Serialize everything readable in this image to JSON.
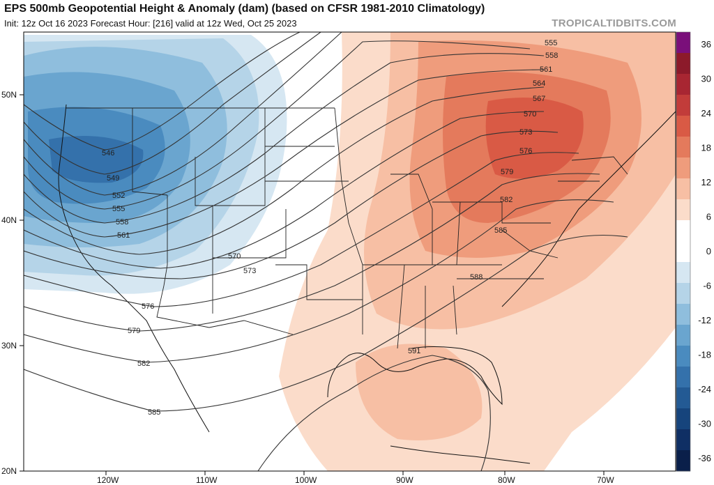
{
  "header": {
    "title": "EPS 500mb Geopotential Height & Anomaly (dam) (based on CFSR 1981-2010 Climatology)",
    "subtitle": "Init: 12z Oct 16 2023   Forecast Hour: [216]   valid at 12z Wed, Oct 25 2023",
    "brand": "TROPICALTIDBITS.COM"
  },
  "map": {
    "lat_labels": [
      "50N",
      "40N",
      "30N",
      "20N"
    ],
    "lon_labels": [
      "120W",
      "110W",
      "100W",
      "90W",
      "80W",
      "70W"
    ],
    "contour_labels": [
      "546",
      "549",
      "552",
      "555",
      "558",
      "561",
      "570",
      "573",
      "576",
      "579",
      "582",
      "585",
      "555",
      "558",
      "561",
      "564",
      "567",
      "570",
      "573",
      "576",
      "579",
      "582",
      "585",
      "588",
      "591"
    ],
    "colors": {
      "ocean": "#ffffff",
      "land_border": "#111111",
      "state_border": "#222222"
    }
  },
  "colorbar": {
    "labels": [
      "36",
      "30",
      "24",
      "18",
      "12",
      "6",
      "0",
      "-6",
      "-12",
      "-18",
      "-24",
      "-30",
      "-36"
    ],
    "colors": [
      "#7a0f7a",
      "#8c1a2a",
      "#a82632",
      "#c23c3a",
      "#d95a45",
      "#e47a5c",
      "#ef9c7c",
      "#f7bfa4",
      "#fbdcca",
      "#ffffff",
      "#ffffff",
      "#d6e7f2",
      "#b5d4e8",
      "#8fbedd",
      "#6aa5cf",
      "#4a8bbf",
      "#3471ab",
      "#235a94",
      "#16447c",
      "#0f2f64",
      "#0a1f4a"
    ]
  }
}
